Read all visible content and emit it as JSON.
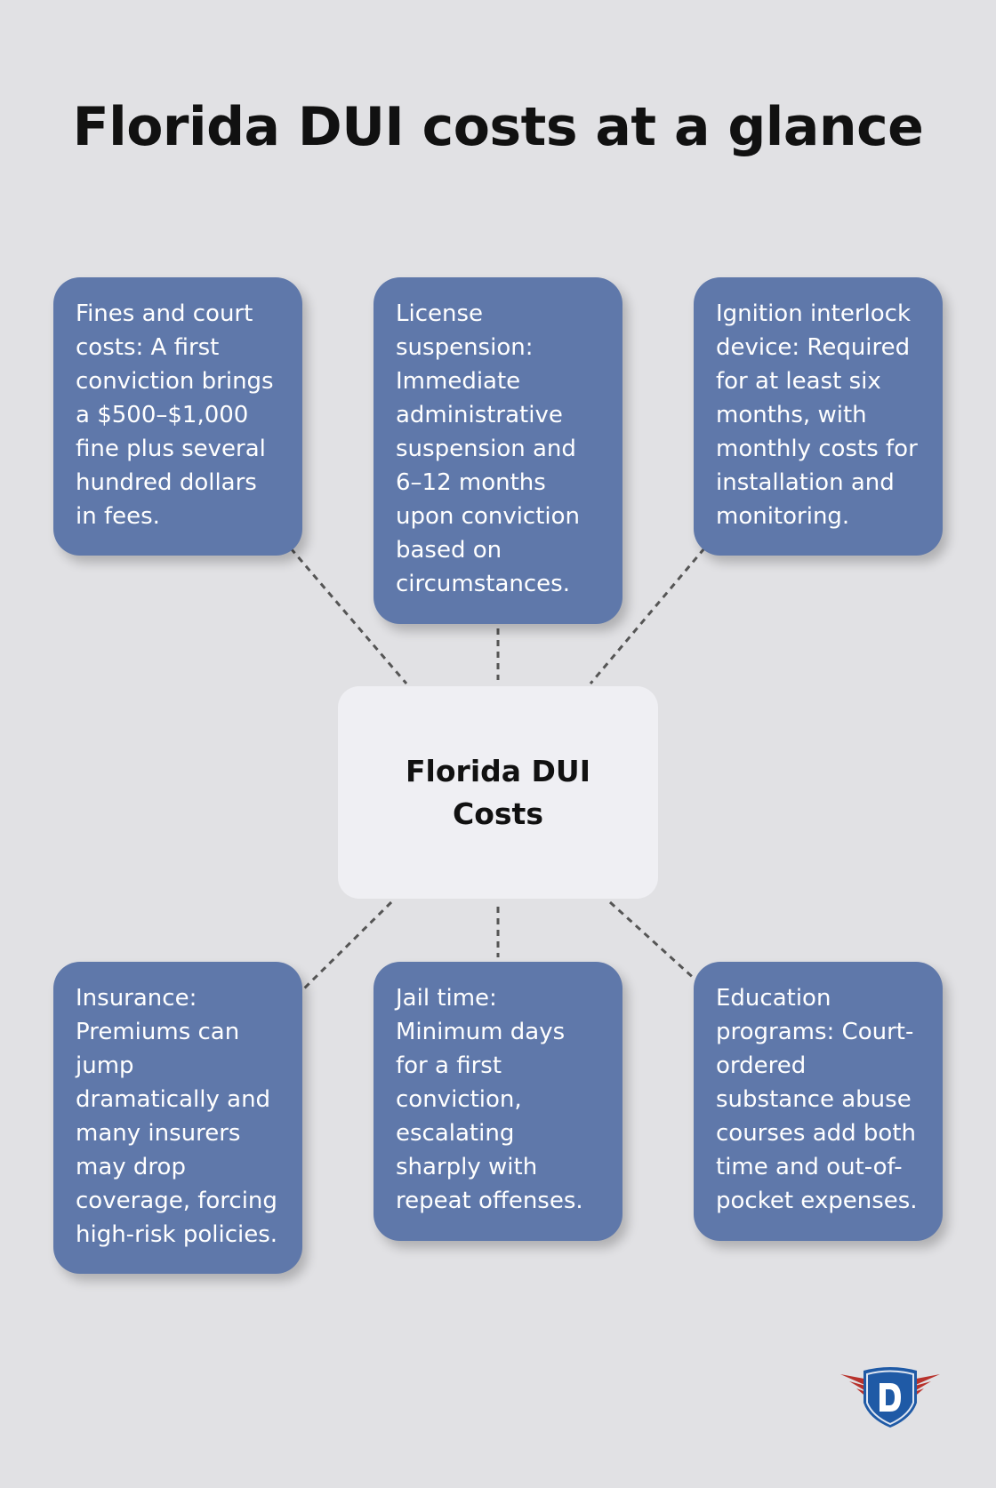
{
  "title": "Florida DUI costs at a glance",
  "center": {
    "lines": [
      "Florida DUI",
      "Costs"
    ]
  },
  "cards": [
    {
      "lines": [
        "Fines and court",
        "costs: A first",
        "conviction brings",
        "a $500–$1,000",
        "fine plus several",
        "hundred dollars",
        "in fees."
      ]
    },
    {
      "lines": [
        "License",
        "suspension:",
        "Immediate",
        "administrative",
        "suspension and",
        "6–12 months",
        "upon conviction",
        "based on",
        "circumstances."
      ]
    },
    {
      "lines": [
        "Ignition interlock",
        "device: Required",
        "for at least six",
        "months, with",
        "monthly costs for",
        "installation and",
        "monitoring."
      ]
    },
    {
      "lines": [
        "Insurance:",
        "Premiums can",
        "jump",
        "dramatically and",
        "many insurers",
        "may drop",
        "coverage, forcing",
        "high-risk policies."
      ]
    },
    {
      "lines": [
        "Jail time:",
        "Minimum days",
        "for a first",
        "conviction,",
        "escalating",
        "sharply with",
        "repeat offenses."
      ]
    },
    {
      "lines": [
        "Education",
        "programs: Court-",
        "ordered",
        "substance abuse",
        "courses add both",
        "time and out-of-",
        "pocket expenses."
      ]
    }
  ],
  "logo": {
    "letter": "D"
  },
  "colors": {
    "card": "#5f78aa",
    "center": "#efeff3",
    "background": "#e1e1e4",
    "logo_blue": "#1f5aa6",
    "logo_red": "#b8322c"
  }
}
